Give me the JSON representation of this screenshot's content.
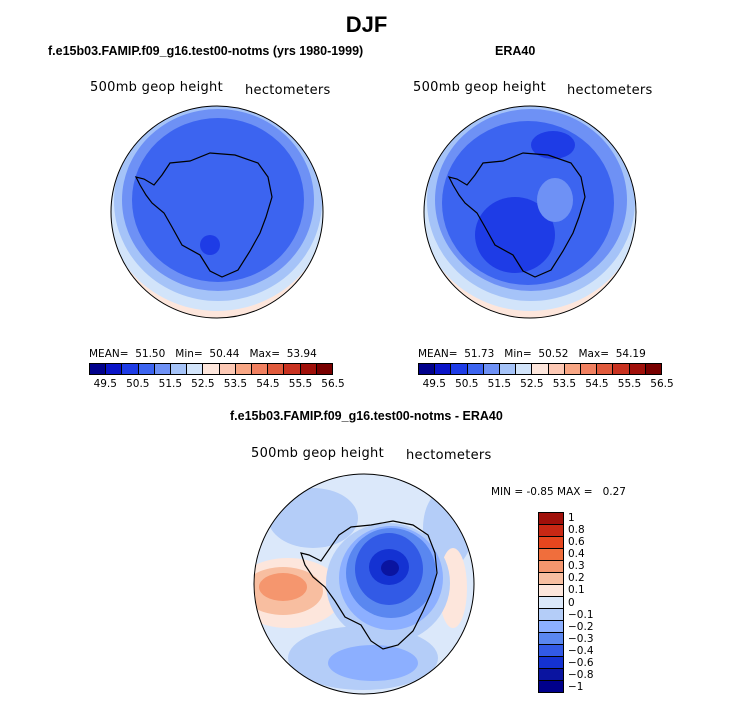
{
  "main_title": "DJF",
  "panels": [
    {
      "title": "f.e15b03.FAMIP.f09_g16.test00-notms (yrs 1980-1999)",
      "field_label": "500mb geop height",
      "units_label": "hectometers",
      "stats": {
        "mean_label": "MEAN=",
        "mean": "51.50",
        "min_label": "Min=",
        "min": "50.44",
        "max_label": "Max=",
        "max": "53.94"
      }
    },
    {
      "title": "ERA40",
      "field_label": "500mb geop height",
      "units_label": "hectometers",
      "stats": {
        "mean_label": "MEAN=",
        "mean": "51.73",
        "min_label": "Min=",
        "min": "50.52",
        "max_label": "Max=",
        "max": "54.19"
      }
    }
  ],
  "diff_panel": {
    "title": "f.e15b03.FAMIP.f09_g16.test00-notms - ERA40",
    "field_label": "500mb geop height",
    "units_label": "hectometers",
    "stats": {
      "min_label": "MIN =",
      "min": "-0.85",
      "max_label": "MAX =",
      "max": "0.27"
    }
  },
  "abs_colorbar": {
    "colors": [
      "#00008b",
      "#0a14c8",
      "#1e3ce6",
      "#3c64f0",
      "#6e91f5",
      "#a5c3f8",
      "#d2e4fa",
      "#fde6dc",
      "#fcc8b4",
      "#f8a684",
      "#f08060",
      "#e05a3c",
      "#c83220",
      "#a0100a",
      "#780000"
    ],
    "tick_labels": [
      "49.5",
      "50.5",
      "51.5",
      "52.5",
      "53.5",
      "54.5",
      "55.5",
      "56.5"
    ]
  },
  "diff_colorbar": {
    "colors": [
      "#a0100a",
      "#c82814",
      "#e6461e",
      "#f06e3c",
      "#f5966e",
      "#f8bea0",
      "#fde6dc",
      "#dbe8fa",
      "#b4cdf8",
      "#8cafff",
      "#5a87f0",
      "#325ae6",
      "#1432d2",
      "#0a14a0",
      "#00008b"
    ],
    "tick_labels": [
      "1",
      "0.8",
      "0.6",
      "0.4",
      "0.3",
      "0.2",
      "0.1",
      "0",
      "−0.1",
      "−0.2",
      "−0.3",
      "−0.4",
      "−0.6",
      "−0.8",
      "−1"
    ]
  }
}
